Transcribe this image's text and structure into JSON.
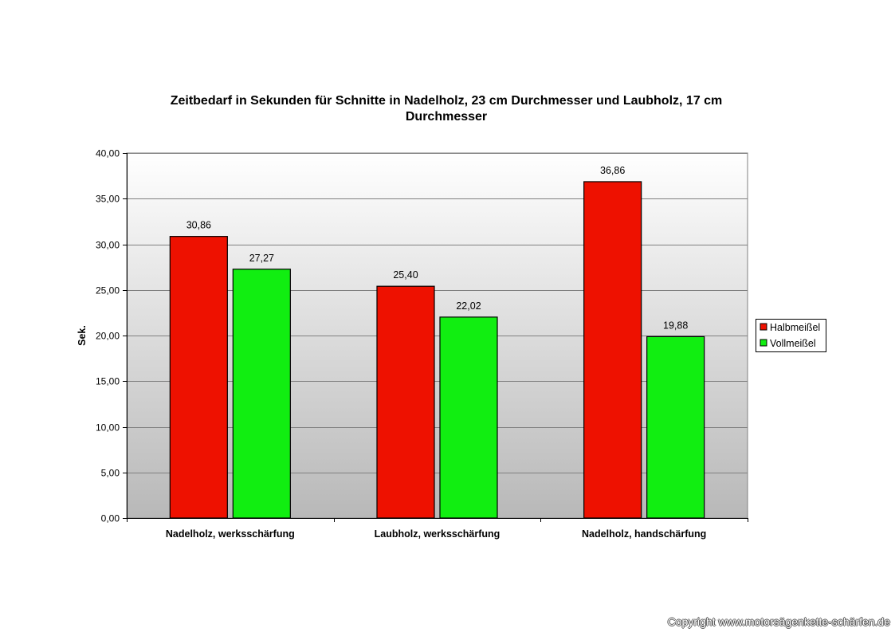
{
  "chart_data": {
    "type": "bar",
    "title": "Zeitbedarf in Sekunden für Schnitte in Nadelholz, 23 cm Durchmesser und Laubholz, 17 cm Durchmesser",
    "title_lines": [
      "Zeitbedarf in Sekunden für Schnitte in Nadelholz, 23 cm Durchmesser und Laubholz, 17 cm",
      "Durchmesser"
    ],
    "xlabel": "",
    "ylabel": "Sek.",
    "categories": [
      "Nadelholz, werksschärfung",
      "Laubholz, werksschärfung",
      "Nadelholz, handschärfung"
    ],
    "series": [
      {
        "name": "Halbmeißel",
        "values": [
          30.86,
          25.4,
          36.86
        ],
        "labels": [
          "30,86",
          "25,40",
          "36,86"
        ],
        "color": "#ee1100"
      },
      {
        "name": "Vollmeißel",
        "values": [
          27.27,
          22.02,
          19.88
        ],
        "labels": [
          "27,27",
          "22,02",
          "19,88"
        ],
        "color": "#11ee11"
      }
    ],
    "ylim": [
      0,
      40
    ],
    "yticks": [
      0,
      5,
      10,
      15,
      20,
      25,
      30,
      35,
      40
    ],
    "ytick_labels": [
      "0,00",
      "5,00",
      "10,00",
      "15,00",
      "20,00",
      "25,00",
      "30,00",
      "35,00",
      "40,00"
    ],
    "grid": true,
    "legend_position": "right",
    "background_gradient": [
      "#ffffff",
      "#b8b8b8"
    ]
  },
  "footer": {
    "copyright": "Copyright www.motorsägenkette-schärfen.de"
  }
}
